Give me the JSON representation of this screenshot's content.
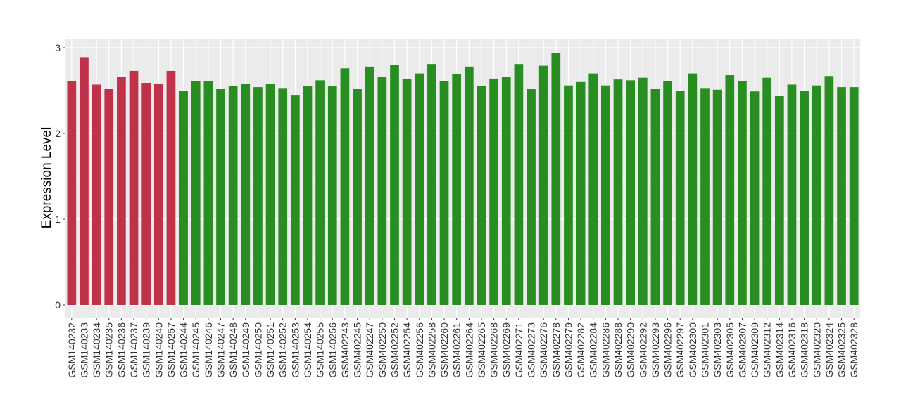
{
  "chart_data": {
    "type": "bar",
    "title": "",
    "xlabel": "",
    "ylabel": "Expression Level",
    "ylim": [
      0,
      3
    ],
    "yticks": [
      0,
      1,
      2,
      3
    ],
    "grid": true,
    "colors": {
      "group1": "#C0314A",
      "group2": "#288E22",
      "panel": "#EBEBEB",
      "grid": "#FFFFFF"
    },
    "categories": [
      "GSM140232",
      "GSM140233",
      "GSM140234",
      "GSM140235",
      "GSM140236",
      "GSM140237",
      "GSM140239",
      "GSM140240",
      "GSM140257",
      "GSM140244",
      "GSM140245",
      "GSM140246",
      "GSM140247",
      "GSM140248",
      "GSM140249",
      "GSM140250",
      "GSM140251",
      "GSM140252",
      "GSM140253",
      "GSM140254",
      "GSM140255",
      "GSM140256",
      "GSM402243",
      "GSM402245",
      "GSM402247",
      "GSM402250",
      "GSM402252",
      "GSM402254",
      "GSM402256",
      "GSM402258",
      "GSM402260",
      "GSM402261",
      "GSM402264",
      "GSM402265",
      "GSM402268",
      "GSM402269",
      "GSM402271",
      "GSM402273",
      "GSM402276",
      "GSM402278",
      "GSM402279",
      "GSM402282",
      "GSM402284",
      "GSM402286",
      "GSM402288",
      "GSM402290",
      "GSM402292",
      "GSM402293",
      "GSM402296",
      "GSM402297",
      "GSM402300",
      "GSM402301",
      "GSM402303",
      "GSM402305",
      "GSM402307",
      "GSM402309",
      "GSM402312",
      "GSM402314",
      "GSM402316",
      "GSM402318",
      "GSM402320",
      "GSM402324",
      "GSM402325",
      "GSM402328"
    ],
    "values": [
      2.61,
      2.89,
      2.57,
      2.52,
      2.66,
      2.73,
      2.59,
      2.58,
      2.73,
      2.5,
      2.61,
      2.61,
      2.52,
      2.55,
      2.58,
      2.54,
      2.58,
      2.53,
      2.45,
      2.55,
      2.62,
      2.55,
      2.76,
      2.52,
      2.78,
      2.66,
      2.8,
      2.64,
      2.7,
      2.81,
      2.61,
      2.69,
      2.78,
      2.55,
      2.64,
      2.66,
      2.81,
      2.52,
      2.79,
      2.94,
      2.56,
      2.6,
      2.7,
      2.56,
      2.63,
      2.62,
      2.65,
      2.52,
      2.61,
      2.5,
      2.7,
      2.53,
      2.51,
      2.68,
      2.61,
      2.49,
      2.65,
      2.44,
      2.57,
      2.5,
      2.56,
      2.67,
      2.54,
      2.54
    ],
    "groups": [
      "group1",
      "group1",
      "group1",
      "group1",
      "group1",
      "group1",
      "group1",
      "group1",
      "group1",
      "group2",
      "group2",
      "group2",
      "group2",
      "group2",
      "group2",
      "group2",
      "group2",
      "group2",
      "group2",
      "group2",
      "group2",
      "group2",
      "group2",
      "group2",
      "group2",
      "group2",
      "group2",
      "group2",
      "group2",
      "group2",
      "group2",
      "group2",
      "group2",
      "group2",
      "group2",
      "group2",
      "group2",
      "group2",
      "group2",
      "group2",
      "group2",
      "group2",
      "group2",
      "group2",
      "group2",
      "group2",
      "group2",
      "group2",
      "group2",
      "group2",
      "group2",
      "group2",
      "group2",
      "group2",
      "group2",
      "group2",
      "group2",
      "group2",
      "group2",
      "group2",
      "group2",
      "group2",
      "group2",
      "group2"
    ]
  }
}
